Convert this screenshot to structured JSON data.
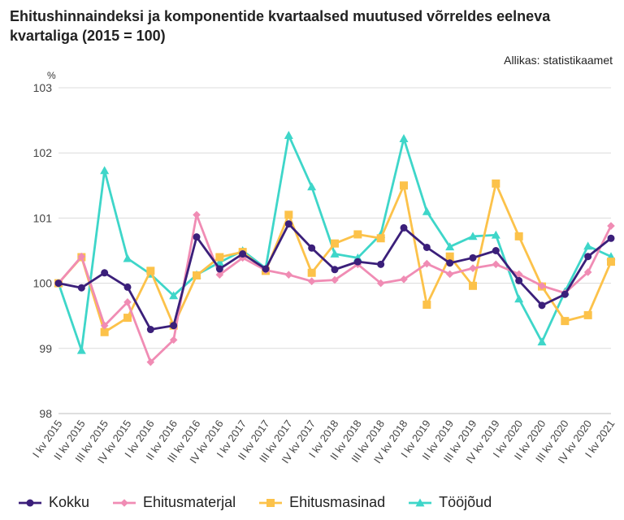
{
  "title": "Ehitushinnaindeksi ja komponentide kvartaalsed muutused võrreldes eelneva kvartaliga (2015 = 100)",
  "source": "Allikas: statistikaamet",
  "chart_data": {
    "type": "line",
    "title": "Ehitushinnaindeksi ja komponentide kvartaalsed muutused võrreldes eelneva kvartaliga (2015 = 100)",
    "ylabel": "%",
    "xlabel": "",
    "ylim": [
      98,
      103
    ],
    "yticks": [
      98,
      99,
      100,
      101,
      102,
      103
    ],
    "grid": true,
    "legend_position": "bottom",
    "categories": [
      "I kv 2015",
      "II kv 2015",
      "III kv 2015",
      "IV kv 2015",
      "I kv 2016",
      "II kv 2016",
      "III kv 2016",
      "IV kv 2016",
      "I kv 2017",
      "II kv 2017",
      "III kv 2017",
      "IV kv 2017",
      "I kv 2018",
      "II kv 2018",
      "III kv 2018",
      "IV kv 2018",
      "I kv 2019",
      "II kv 2019",
      "III kv 2019",
      "IV kv 2019",
      "I kv 2020",
      "II kv 2020",
      "III kv 2020",
      "IV kv 2020",
      "I kv 2021"
    ],
    "series": [
      {
        "name": "Kokku",
        "color": "#3b1f7a",
        "marker": "circle",
        "values": [
          100.0,
          99.93,
          100.16,
          99.94,
          99.29,
          99.35,
          100.71,
          100.22,
          100.45,
          100.22,
          100.91,
          100.54,
          100.21,
          100.33,
          100.29,
          100.85,
          100.55,
          100.31,
          100.39,
          100.5,
          100.04,
          99.66,
          99.83,
          100.41,
          100.69
        ]
      },
      {
        "name": "Ehitusmaterjal",
        "color": "#f08cb4",
        "marker": "diamond",
        "values": [
          100.0,
          100.41,
          99.35,
          99.71,
          98.79,
          99.13,
          101.05,
          100.13,
          100.39,
          100.2,
          100.13,
          100.03,
          100.05,
          100.29,
          100.0,
          100.06,
          100.3,
          100.14,
          100.23,
          100.29,
          100.14,
          99.96,
          99.85,
          100.17,
          100.88
        ]
      },
      {
        "name": "Ehitusmasinad",
        "color": "#fcc24a",
        "marker": "square",
        "values": [
          100.0,
          100.4,
          99.25,
          99.47,
          100.19,
          99.35,
          100.12,
          100.4,
          100.48,
          100.19,
          101.05,
          100.16,
          100.61,
          100.75,
          100.69,
          101.5,
          99.67,
          100.41,
          99.96,
          101.53,
          100.72,
          99.95,
          99.42,
          99.51,
          100.33
        ]
      },
      {
        "name": "Tööjõud",
        "color": "#3ed6c9",
        "marker": "triangle",
        "values": [
          100.0,
          98.97,
          101.73,
          100.38,
          100.14,
          99.81,
          100.13,
          100.32,
          100.5,
          100.23,
          102.27,
          101.48,
          100.45,
          100.39,
          100.75,
          102.22,
          101.1,
          100.56,
          100.72,
          100.74,
          99.76,
          99.1,
          99.87,
          100.57,
          100.41
        ]
      }
    ]
  }
}
